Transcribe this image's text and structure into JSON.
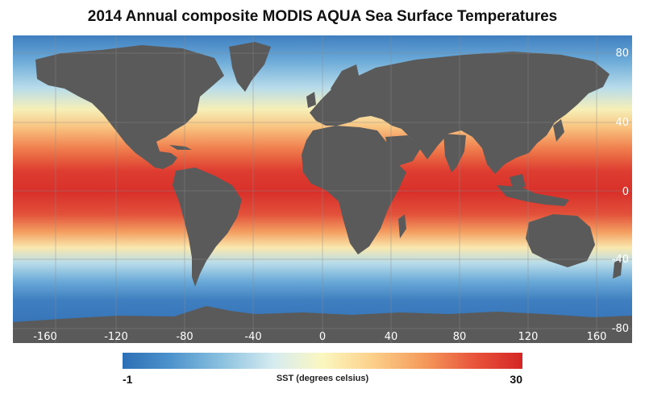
{
  "title": "2014 Annual composite MODIS AQUA Sea Surface Temperatures",
  "map": {
    "longitude_ticks": [
      "-160",
      "-120",
      "-80",
      "-40",
      "0",
      "40",
      "80",
      "120",
      "160"
    ],
    "latitude_ticks": [
      "80",
      "40",
      "0",
      "-40",
      "-80"
    ],
    "land_color": "#5a5a5a",
    "grid_color": "#8c8c8c"
  },
  "colorbar": {
    "min_label": "-1",
    "max_label": "30",
    "label": "SST (degrees celsius)",
    "colors": [
      "#2d6fb5",
      "#8cc2e0",
      "#fbf7c0",
      "#f59c5c",
      "#d52625"
    ]
  }
}
